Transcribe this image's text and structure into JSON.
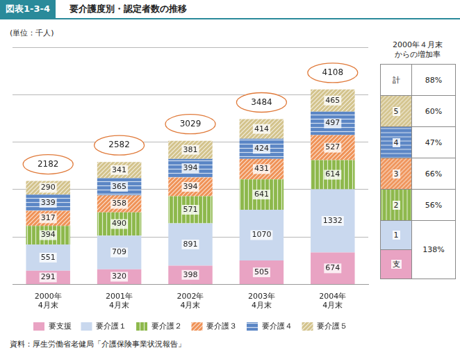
{
  "title_badge": "図表1-3-4",
  "title": "要介護度別・認定者数の推移",
  "unit": "(単位：千人)",
  "source": "資料：厚生労働省老健局「介護保険事業状況報告」",
  "chart_data": {
    "type": "bar",
    "stacked": true,
    "categories": [
      [
        "2000年",
        "4月末"
      ],
      [
        "2001年",
        "4月末"
      ],
      [
        "2002年",
        "4月末"
      ],
      [
        "2003年",
        "4月末"
      ],
      [
        "2004年",
        "4月末"
      ]
    ],
    "series": [
      {
        "name": "要支援",
        "color": "#e9a3c3",
        "values": [
          291,
          320,
          398,
          505,
          674
        ]
      },
      {
        "name": "要介護１",
        "color": "#c9d8ee",
        "values": [
          551,
          709,
          891,
          1070,
          1332
        ]
      },
      {
        "name": "要介護２",
        "color": "#8db84b",
        "values": [
          394,
          490,
          571,
          641,
          614
        ]
      },
      {
        "name": "要介護３",
        "color": "#ef9257",
        "values": [
          317,
          358,
          394,
          431,
          527
        ]
      },
      {
        "name": "要介護４",
        "color": "#5b86c5",
        "values": [
          339,
          365,
          394,
          424,
          497
        ]
      },
      {
        "name": "要介護５",
        "color": "#d3c38c",
        "values": [
          290,
          341,
          381,
          414,
          465
        ]
      }
    ],
    "totals": [
      2182,
      2582,
      3029,
      3484,
      4108
    ],
    "ylim": [
      0,
      5000
    ],
    "yticks": [
      0,
      1000,
      2000,
      3000,
      4000,
      5000
    ],
    "grid": true,
    "tick_labels": "x",
    "data_labels": true,
    "legend": "bottom"
  },
  "increase_table": {
    "title": [
      "2000年４月末",
      "からの増加率"
    ],
    "rows": [
      {
        "labels": [
          "計"
        ],
        "colors": [
          "#ffffff"
        ],
        "value": "88%"
      },
      {
        "labels": [
          "5"
        ],
        "colors": [
          "#d3c38c"
        ],
        "value": "60%"
      },
      {
        "labels": [
          "4"
        ],
        "colors": [
          "#5b86c5"
        ],
        "value": "47%"
      },
      {
        "labels": [
          "3"
        ],
        "colors": [
          "#ef9257"
        ],
        "value": "66%"
      },
      {
        "labels": [
          "2"
        ],
        "colors": [
          "#8db84b"
        ],
        "value": "56%"
      },
      {
        "labels": [
          "1",
          "支"
        ],
        "colors": [
          "#c9d8ee",
          "#e9a3c3"
        ],
        "value": "138%"
      }
    ]
  }
}
